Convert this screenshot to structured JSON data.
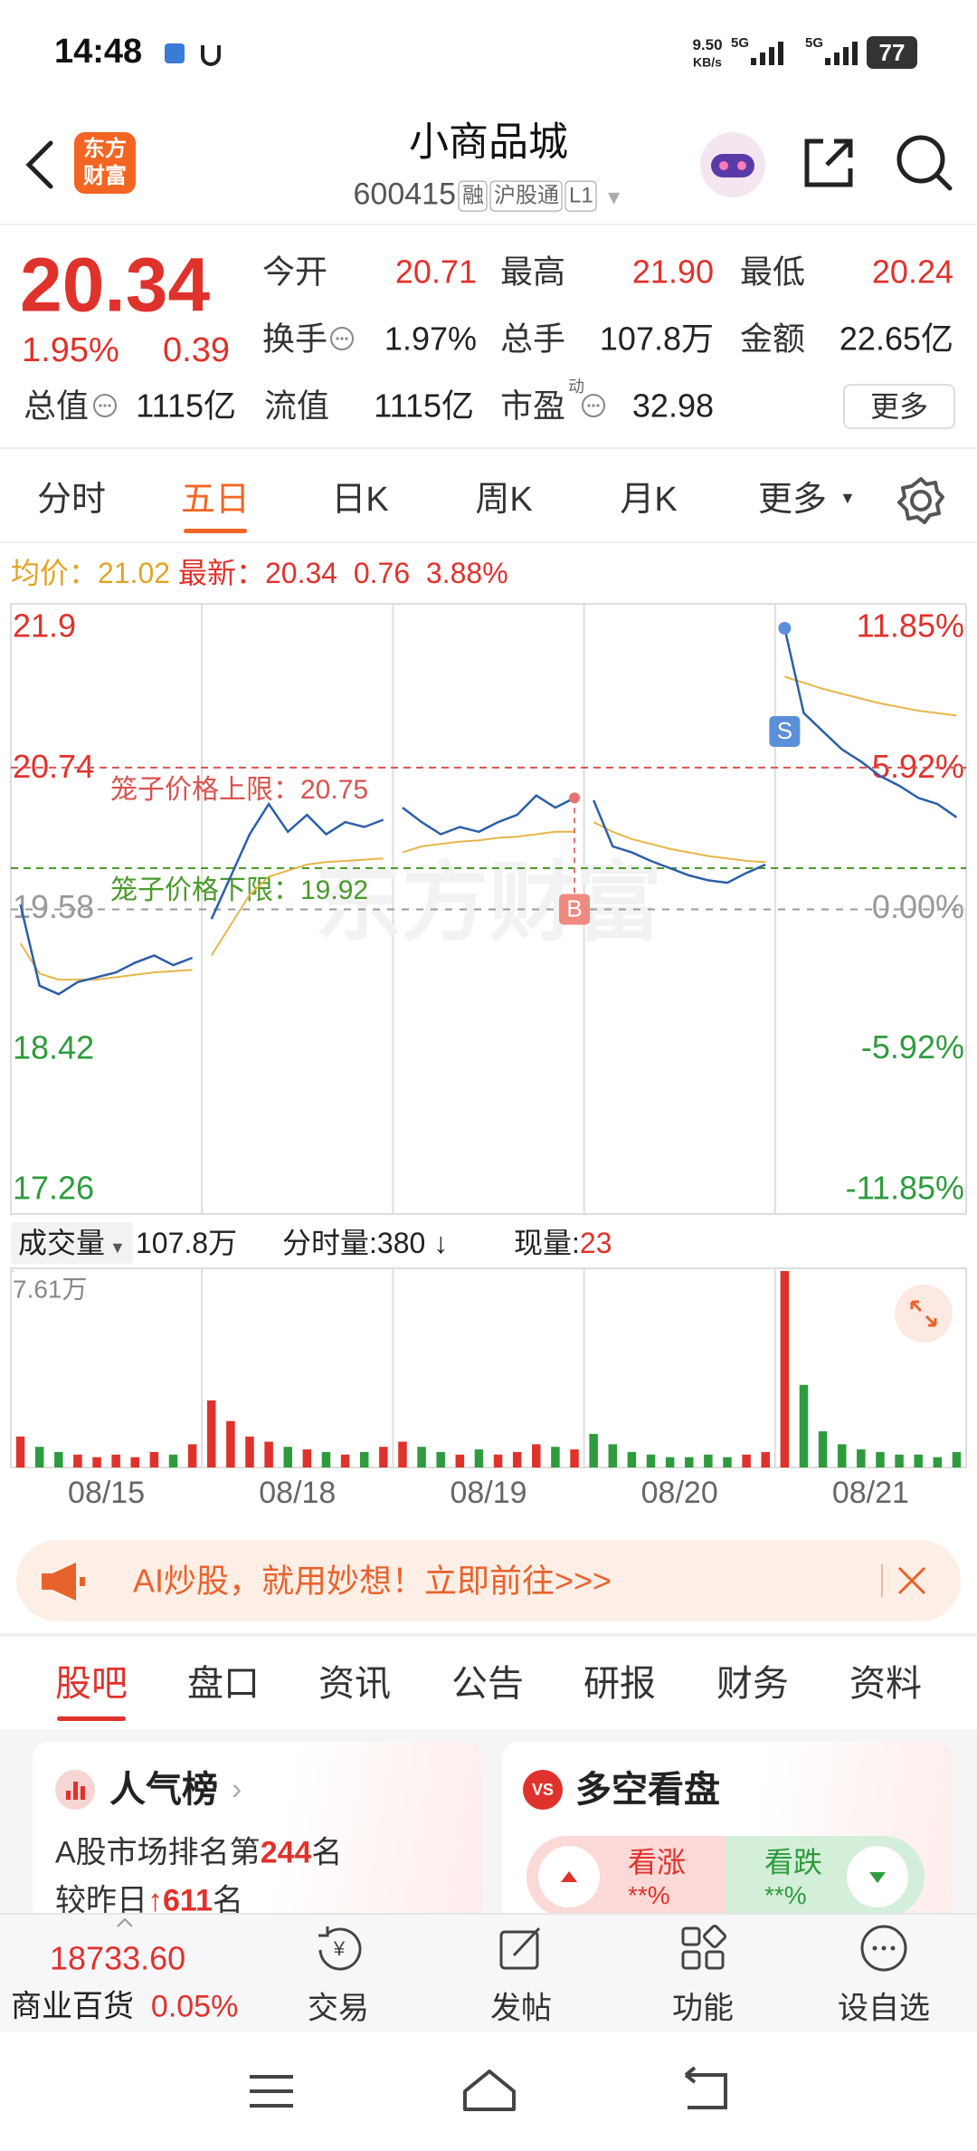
{
  "status": {
    "time": "14:48",
    "speed": "9.50",
    "speed_unit": "KB/s",
    "net1": "5G",
    "net2": "5G",
    "battery": "77"
  },
  "header": {
    "logo": [
      "东方",
      "财富"
    ],
    "title": "小商品城",
    "code": "600415",
    "tags": [
      "融",
      "沪股通",
      "L1"
    ]
  },
  "quote": {
    "price": "20.34",
    "change_pct": "1.95%",
    "change": "0.39",
    "fields": [
      {
        "label": "今开",
        "value": "20.71"
      },
      {
        "label": "最高",
        "value": "21.90"
      },
      {
        "label": "最低",
        "value": "20.24"
      },
      {
        "label": "换手",
        "value": "1.97%"
      },
      {
        "label": "总手",
        "value": "107.8万"
      },
      {
        "label": "金额",
        "value": "22.65亿"
      },
      {
        "label": "总值",
        "value": "1115亿"
      },
      {
        "label": "流值",
        "value": "1115亿"
      },
      {
        "label": "市盈",
        "sup": "动",
        "value": "32.98"
      }
    ],
    "more": "更多"
  },
  "tabs": {
    "items": [
      "分时",
      "五日",
      "日K",
      "周K",
      "月K",
      "更多"
    ],
    "active": 1
  },
  "info": {
    "avg_label": "均价：",
    "avg": "21.02",
    "last_label": "最新：",
    "last": "20.34",
    "change": "0.76",
    "change_pct": "3.88%"
  },
  "volume_info": {
    "label": "成交量",
    "total": "107.8万",
    "per_min": "分时量:380",
    "current_label": "现量:",
    "current": "23"
  },
  "banner": {
    "text": "AI炒股，就用妙想！立即前往>>>"
  },
  "sub_tabs": {
    "items": [
      "股吧",
      "盘口",
      "资讯",
      "公告",
      "研报",
      "财务",
      "资料"
    ],
    "active": 0
  },
  "cards": {
    "popularity": {
      "title": "人气榜",
      "rank_prefix": "A股市场排名第",
      "rank": "244",
      "rank_suffix": "名",
      "change_prefix": "较昨日",
      "change": "611",
      "change_suffix": "名"
    },
    "sentiment": {
      "title": "多空看盘",
      "bull": "看涨",
      "bull_pct": "**%",
      "bear": "看跌",
      "bear_pct": "**%"
    }
  },
  "bottom": {
    "index_value": "18733.60",
    "index_name": "商业百货",
    "index_change": "0.05%",
    "actions": [
      "交易",
      "发帖",
      "功能",
      "设自选"
    ]
  },
  "chart_data": [
    {
      "type": "line",
      "watermark": "东方财富",
      "ylim": [
        17.26,
        21.9
      ],
      "yticks": [
        17.26,
        18.42,
        19.58,
        20.74,
        21.9
      ],
      "y2lim": [
        -11.85,
        11.85
      ],
      "y2ticks": [
        {
          "value": -11.85,
          "label": "-11.85%"
        },
        {
          "value": -5.92,
          "label": "-5.92%"
        },
        {
          "value": 0,
          "label": "0.00%"
        },
        {
          "value": 5.92,
          "label": "5.92%"
        },
        {
          "value": 11.85,
          "label": "11.85%"
        }
      ],
      "up_color": "#e0322c",
      "down_color": "#2e9b3e",
      "flat_color": "#999999",
      "limits": [
        {
          "label": "笼子价格上限：",
          "value": 20.75,
          "color": "#d9534f"
        },
        {
          "label": "笼子价格下限：",
          "value": 19.92,
          "color": "#4a9a2a"
        }
      ],
      "markers": {
        "buy": "B",
        "sell": "S"
      },
      "series": [
        {
          "color": "#2b5fa8",
          "values": [
            [
              19.62,
              18.95,
              18.88,
              18.98,
              19.02,
              19.06,
              19.14,
              19.2,
              19.12,
              19.18
            ],
            [
              19.5,
              19.85,
              20.2,
              20.45,
              20.22,
              20.36,
              20.2,
              20.3,
              20.26,
              20.32
            ],
            [
              20.42,
              20.3,
              20.2,
              20.26,
              20.22,
              20.3,
              20.36,
              20.52,
              20.42,
              20.5
            ],
            [
              20.48,
              20.1,
              20.05,
              19.98,
              19.92,
              19.86,
              19.82,
              19.8,
              19.88,
              19.95
            ],
            [
              21.9,
              21.2,
              21.05,
              20.9,
              20.8,
              20.68,
              20.6,
              20.5,
              20.45,
              20.34
            ]
          ]
        },
        {
          "color": "#e6b64a",
          "values": [
            [
              19.3,
              19.05,
              19.0,
              19.0,
              19.0,
              19.02,
              19.04,
              19.06,
              19.07,
              19.08
            ],
            [
              19.2,
              19.45,
              19.7,
              19.85,
              19.9,
              19.95,
              19.97,
              19.98,
              19.99,
              20.0
            ],
            [
              20.05,
              20.1,
              20.12,
              20.14,
              20.15,
              20.17,
              20.18,
              20.2,
              20.22,
              20.22
            ],
            [
              20.3,
              20.22,
              20.16,
              20.12,
              20.08,
              20.05,
              20.02,
              20.0,
              19.98,
              19.97
            ],
            [
              21.5,
              21.45,
              21.4,
              21.36,
              21.32,
              21.28,
              21.25,
              21.22,
              21.2,
              21.18
            ]
          ]
        }
      ]
    },
    {
      "type": "bar",
      "categories": [
        "08/15",
        "08/18",
        "08/19",
        "08/20",
        "08/21"
      ],
      "ylim": [
        0,
        7.61
      ],
      "yticks": [
        {
          "value": 7.61,
          "label": "7.61万"
        }
      ],
      "up_color": "#e0322c",
      "down_color": "#2e9b3e",
      "values": [
        [
          1.2,
          0.8,
          0.6,
          0.5,
          0.4,
          0.5,
          0.4,
          0.6,
          0.5,
          0.9
        ],
        [
          2.6,
          1.8,
          1.2,
          1.0,
          0.8,
          0.7,
          0.6,
          0.5,
          0.6,
          0.8
        ],
        [
          1.0,
          0.8,
          0.6,
          0.5,
          0.7,
          0.5,
          0.6,
          0.9,
          0.8,
          0.7
        ],
        [
          1.3,
          0.9,
          0.6,
          0.5,
          0.4,
          0.4,
          0.5,
          0.4,
          0.5,
          0.6
        ],
        [
          7.61,
          3.2,
          1.4,
          0.9,
          0.7,
          0.6,
          0.5,
          0.5,
          0.4,
          0.6
        ]
      ]
    }
  ]
}
